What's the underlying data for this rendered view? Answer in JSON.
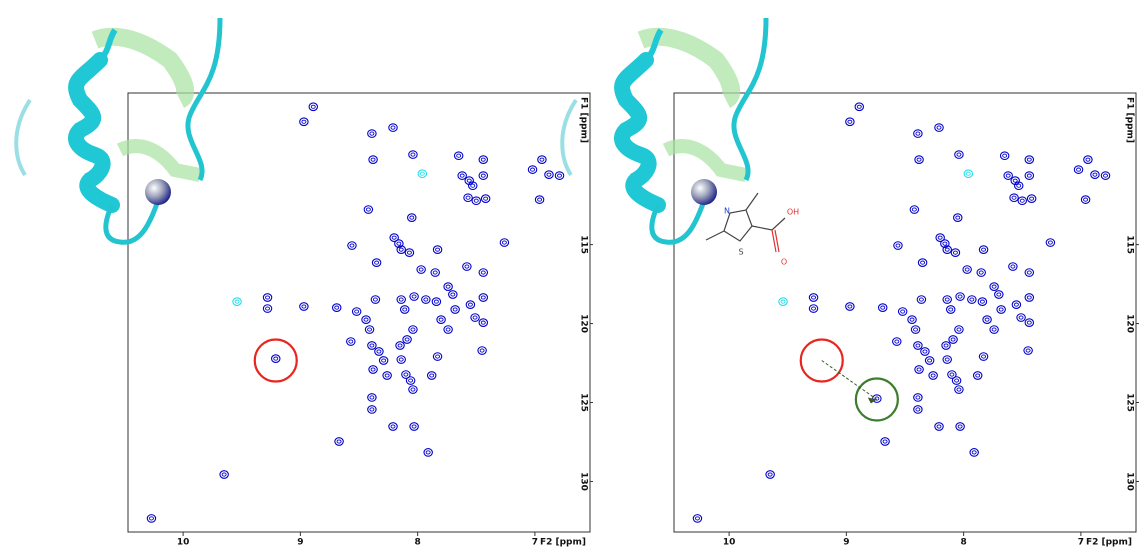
{
  "chart_data": [
    {
      "type": "scatter",
      "xlabel": "F2 [ppm]",
      "ylabel": "F1 [ppm]",
      "xlim": [
        10.47,
        6.53
      ],
      "ylim": [
        133.2,
        105.4
      ],
      "xticks": [
        10,
        9,
        8,
        7
      ],
      "yticks": [
        115,
        120,
        125,
        130
      ],
      "series": [
        {
          "color": "#0000cc",
          "x": [
            8.89,
            8.97,
            8.39,
            8.21,
            8.38,
            8.04,
            7.65,
            7.62,
            7.56,
            7.53,
            7.44,
            7.44,
            7.57,
            7.5,
            7.42,
            7.02,
            6.94,
            6.88,
            6.79,
            6.96,
            8.42,
            8.05,
            8.2,
            8.16,
            8.14,
            8.56,
            8.35,
            8.07,
            7.83,
            7.97,
            7.85,
            7.58,
            7.74,
            7.84,
            7.93,
            8.03,
            8.14,
            8.36,
            8.11,
            8.52,
            8.44,
            8.41,
            8.04,
            8.09,
            7.8,
            7.74,
            7.68,
            7.7,
            7.55,
            7.51,
            7.44,
            7.44,
            7.44,
            7.26,
            7.45,
            8.57,
            8.39,
            8.33,
            8.29,
            8.15,
            8.14,
            8.1,
            8.06,
            8.04,
            8.26,
            8.39,
            8.39,
            7.88,
            7.83,
            8.38,
            8.21,
            8.03,
            7.91,
            8.67,
            9.28,
            8.97,
            8.69,
            9.28,
            9.65,
            10.27,
            9.21
          ],
          "y": [
            106.27,
            107.22,
            107.97,
            107.59,
            109.62,
            109.3,
            109.37,
            110.63,
            110.95,
            111.27,
            109.62,
            110.63,
            112.03,
            112.22,
            112.09,
            110.25,
            109.62,
            110.57,
            110.63,
            112.15,
            112.78,
            113.29,
            114.56,
            114.94,
            115.32,
            115.06,
            116.14,
            115.51,
            115.32,
            116.58,
            116.77,
            116.39,
            117.66,
            118.61,
            118.48,
            118.29,
            118.48,
            118.48,
            119.11,
            119.24,
            119.75,
            120.38,
            120.38,
            121.01,
            119.75,
            120.38,
            119.11,
            118.16,
            118.8,
            119.62,
            119.94,
            118.35,
            116.77,
            114.87,
            121.71,
            121.14,
            121.39,
            121.77,
            122.34,
            121.39,
            122.28,
            123.23,
            123.61,
            124.18,
            123.29,
            124.68,
            125.44,
            123.29,
            122.09,
            122.91,
            126.52,
            126.52,
            128.16,
            127.47,
            119.05,
            118.92,
            118.99,
            118.35,
            129.56,
            132.34,
            122.22
          ]
        },
        {
          "color": "#22ddee",
          "x": [
            9.54,
            7.96
          ],
          "y": [
            118.61,
            110.51
          ]
        }
      ],
      "circles": [
        {
          "x": 9.21,
          "y": 122.34,
          "color": "#e8251f"
        }
      ],
      "arrow": false
    },
    {
      "type": "scatter",
      "xlabel": "F2 [ppm]",
      "ylabel": "F1 [ppm]",
      "xlim": [
        10.47,
        6.53
      ],
      "ylim": [
        133.2,
        105.4
      ],
      "xticks": [
        10,
        9,
        8,
        7
      ],
      "yticks": [
        115,
        120,
        125,
        130
      ],
      "series": [
        {
          "color": "#0000cc",
          "x": [
            8.89,
            8.97,
            8.39,
            8.21,
            8.38,
            8.04,
            7.65,
            7.62,
            7.56,
            7.53,
            7.44,
            7.44,
            7.57,
            7.5,
            7.42,
            7.02,
            6.94,
            6.88,
            6.79,
            6.96,
            8.42,
            8.05,
            8.2,
            8.16,
            8.14,
            8.56,
            8.35,
            8.07,
            7.83,
            7.97,
            7.85,
            7.58,
            7.74,
            7.84,
            7.93,
            8.03,
            8.14,
            8.36,
            8.11,
            8.52,
            8.44,
            8.41,
            8.04,
            8.09,
            7.8,
            7.74,
            7.68,
            7.7,
            7.55,
            7.51,
            7.44,
            7.44,
            7.44,
            7.26,
            7.45,
            8.57,
            8.39,
            8.33,
            8.29,
            8.15,
            8.14,
            8.1,
            8.06,
            8.04,
            8.26,
            8.39,
            8.39,
            7.88,
            7.83,
            8.38,
            8.21,
            8.03,
            7.91,
            8.67,
            9.28,
            8.97,
            8.69,
            9.28,
            9.65,
            10.27,
            8.74
          ],
          "y": [
            106.27,
            107.22,
            107.97,
            107.59,
            109.62,
            109.3,
            109.37,
            110.63,
            110.95,
            111.27,
            109.62,
            110.63,
            112.03,
            112.22,
            112.09,
            110.25,
            109.62,
            110.57,
            110.63,
            112.15,
            112.78,
            113.29,
            114.56,
            114.94,
            115.32,
            115.06,
            116.14,
            115.51,
            115.32,
            116.58,
            116.77,
            116.39,
            117.66,
            118.61,
            118.48,
            118.29,
            118.48,
            118.48,
            119.11,
            119.24,
            119.75,
            120.38,
            120.38,
            121.01,
            119.75,
            120.38,
            119.11,
            118.16,
            118.8,
            119.62,
            119.94,
            118.35,
            116.77,
            114.87,
            121.71,
            121.14,
            121.39,
            121.77,
            122.34,
            121.39,
            122.28,
            123.23,
            123.61,
            124.18,
            123.29,
            124.68,
            125.44,
            123.29,
            122.09,
            122.91,
            126.52,
            126.52,
            128.16,
            127.47,
            119.05,
            118.92,
            118.99,
            118.35,
            129.56,
            132.34,
            124.75
          ]
        },
        {
          "color": "#22ddee",
          "x": [
            9.54,
            7.96
          ],
          "y": [
            118.61,
            110.51
          ]
        }
      ],
      "circles": [
        {
          "x": 9.21,
          "y": 122.34,
          "color": "#e8251f"
        },
        {
          "x": 8.74,
          "y": 124.81,
          "color": "#3a7d2c"
        }
      ],
      "arrow": true,
      "structure_labels": [
        "N",
        "S",
        "OH",
        "O"
      ]
    }
  ]
}
